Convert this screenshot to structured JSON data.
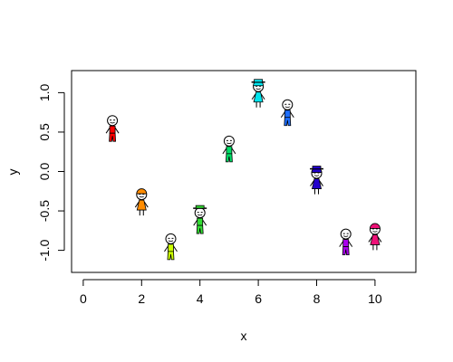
{
  "chart_data": {
    "type": "scatter",
    "title": "",
    "xlabel": "x",
    "ylabel": "y",
    "xlim": [
      -0.4,
      11.4
    ],
    "ylim": [
      -1.28,
      1.28
    ],
    "x_ticks": [
      0,
      2,
      4,
      6,
      8,
      10
    ],
    "x_tick_labels": [
      "0",
      "2",
      "4",
      "6",
      "8",
      "10"
    ],
    "y_ticks": [
      -1.0,
      -0.5,
      0.0,
      0.5,
      1.0
    ],
    "y_tick_labels": [
      "-1.0",
      "-0.5",
      "0.0",
      "0.5",
      "1.0"
    ],
    "grid": false,
    "marker": "stick-figure",
    "points": [
      {
        "x": 1,
        "y": 0.52,
        "color": "#ff0000",
        "gender": "male",
        "hat": false
      },
      {
        "x": 2,
        "y": -0.42,
        "color": "#ff8c00",
        "gender": "female",
        "hat": false
      },
      {
        "x": 3,
        "y": -0.98,
        "color": "#ccff00",
        "gender": "male",
        "hat": false
      },
      {
        "x": 4,
        "y": -0.65,
        "color": "#33dd33",
        "gender": "male",
        "hat": true
      },
      {
        "x": 5,
        "y": 0.26,
        "color": "#00dd66",
        "gender": "male",
        "hat": false
      },
      {
        "x": 6,
        "y": 0.95,
        "color": "#00e5ee",
        "gender": "female",
        "hat": true
      },
      {
        "x": 7,
        "y": 0.72,
        "color": "#1e6fff",
        "gender": "male",
        "hat": false
      },
      {
        "x": 8,
        "y": -0.15,
        "color": "#2200cc",
        "gender": "female",
        "hat": true
      },
      {
        "x": 9,
        "y": -0.92,
        "color": "#aa00ee",
        "gender": "male",
        "hat": false
      },
      {
        "x": 10,
        "y": -0.86,
        "color": "#ee1177",
        "gender": "female",
        "hat": false
      }
    ]
  }
}
